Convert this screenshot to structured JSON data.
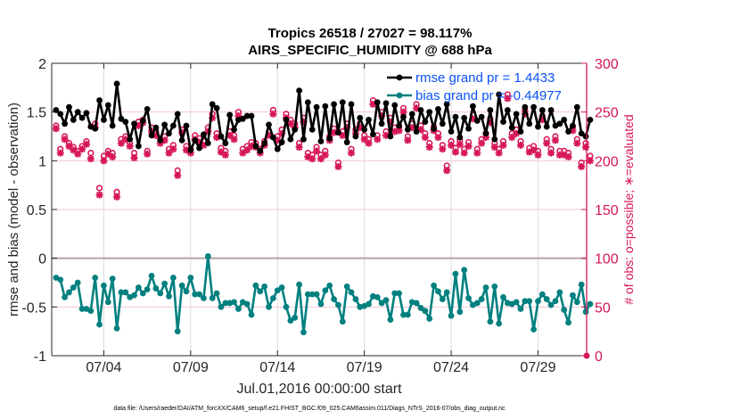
{
  "chart_data": {
    "type": "line",
    "title": [
      "Tropics 26518 / 27027 = 98.117%",
      "AIRS_SPECIFIC_HUMIDITY @ 688 hPa"
    ],
    "xlabel": "Jul.01,2016 00:00:00 start",
    "ylabel": "rmse and bias (model - observation)",
    "ylabel_right": "# of obs: o=possible; ∗=evaluated",
    "footnote": "data file: /Users/raeder/DAI/ATM_forcXX/CAM6_setup/f.e21.FHIST_BGC.f09_025.CAM6assim.011/Diags_NTrS_2016-07/obs_diag_output.nc",
    "x_unit": "days since Jul.01,2016 00:00:00",
    "xlim": [
      0,
      30.8
    ],
    "x_ticks": [
      3,
      8,
      13,
      18,
      23,
      28
    ],
    "x_tick_labels": [
      "07/04",
      "07/09",
      "07/14",
      "07/19",
      "07/24",
      "07/29"
    ],
    "ylim": [
      -1,
      2
    ],
    "y_ticks": [
      -1,
      -0.5,
      0,
      0.5,
      1,
      1.5,
      2
    ],
    "y_tick_labels": [
      "-1",
      "-0.5",
      "0",
      "0.5",
      "1",
      "1.5",
      "2"
    ],
    "ylim_right": [
      0,
      300
    ],
    "y_ticks_right": [
      0,
      50,
      100,
      150,
      200,
      250,
      300
    ],
    "y_tick_labels_right": [
      "0",
      "50",
      "100",
      "150",
      "200",
      "250",
      "300"
    ],
    "grid": true,
    "legend_position": "top-right",
    "legend": [
      "rmse grand pr = 1.4433",
      "bias grand pr = -0.44977"
    ],
    "colors": {
      "rmse": "#000000",
      "bias": "#00807f",
      "obs": "#d6175a",
      "legend_text": "#0b52f5",
      "zero_line": "#b8a6ab"
    },
    "x_start": 0.25,
    "x_step": 0.25,
    "series": [
      {
        "name": "rmse",
        "axis": "left",
        "values": [
          1.52,
          1.48,
          1.38,
          1.55,
          1.42,
          1.5,
          1.44,
          1.49,
          1.35,
          1.33,
          1.62,
          1.42,
          1.57,
          1.36,
          1.79,
          1.43,
          1.4,
          1.22,
          1.38,
          1.15,
          1.41,
          1.53,
          1.26,
          1.34,
          1.21,
          1.37,
          1.28,
          1.36,
          1.48,
          1.21,
          1.36,
          1.11,
          1.21,
          1.13,
          1.27,
          1.18,
          1.58,
          1.54,
          1.25,
          1.18,
          1.47,
          1.32,
          1.42,
          1.43,
          1.46,
          1.46,
          1.15,
          1.1,
          1.18,
          1.37,
          1.24,
          1.12,
          1.19,
          1.42,
          1.22,
          1.32,
          1.72,
          1.22,
          1.6,
          1.32,
          1.55,
          1.2,
          1.56,
          1.23,
          1.58,
          1.29,
          1.6,
          1.19,
          1.58,
          1.25,
          1.44,
          1.32,
          1.42,
          1.27,
          1.6,
          1.38,
          1.59,
          1.25,
          1.57,
          1.36,
          1.45,
          1.32,
          1.48,
          1.3,
          1.52,
          1.4,
          1.5,
          1.33,
          1.53,
          1.38,
          1.58,
          1.3,
          1.45,
          1.24,
          1.44,
          1.33,
          1.56,
          1.41,
          1.45,
          1.28,
          1.52,
          1.22,
          1.68,
          1.4,
          1.52,
          1.34,
          1.48,
          1.3,
          1.55,
          1.38,
          1.55,
          1.35,
          1.52,
          1.35,
          1.52,
          1.36,
          1.38,
          1.42,
          1.3,
          1.36,
          1.55,
          1.28,
          1.25,
          1.42
        ]
      },
      {
        "name": "bias",
        "axis": "left",
        "values": [
          -0.2,
          -0.22,
          -0.4,
          -0.35,
          -0.3,
          -0.25,
          -0.52,
          -0.52,
          -0.54,
          -0.2,
          -0.68,
          -0.28,
          -0.45,
          -0.21,
          -0.72,
          -0.35,
          -0.35,
          -0.4,
          -0.38,
          -0.3,
          -0.36,
          -0.32,
          -0.18,
          -0.31,
          -0.36,
          -0.26,
          -0.39,
          -0.2,
          -0.75,
          -0.28,
          -0.34,
          -0.2,
          -0.37,
          -0.37,
          -0.41,
          0.02,
          -0.41,
          -0.36,
          -0.5,
          -0.46,
          -0.46,
          -0.45,
          -0.52,
          -0.45,
          -0.47,
          -0.58,
          -0.28,
          -0.34,
          -0.29,
          -0.5,
          -0.41,
          -0.33,
          -0.3,
          -0.5,
          -0.64,
          -0.61,
          -0.27,
          -0.76,
          -0.37,
          -0.37,
          -0.37,
          -0.47,
          -0.33,
          -0.28,
          -0.42,
          -0.48,
          -0.65,
          -0.29,
          -0.35,
          -0.42,
          -0.5,
          -0.49,
          -0.47,
          -0.39,
          -0.4,
          -0.46,
          -0.43,
          -0.63,
          -0.36,
          -0.36,
          -0.58,
          -0.58,
          -0.45,
          -0.46,
          -0.51,
          -0.54,
          -0.62,
          -0.28,
          -0.34,
          -0.42,
          -0.35,
          -0.59,
          -0.16,
          -0.55,
          -0.12,
          -0.41,
          -0.48,
          -0.46,
          -0.42,
          -0.3,
          -0.65,
          -0.29,
          -0.67,
          -0.4,
          -0.46,
          -0.47,
          -0.45,
          -0.52,
          -0.44,
          -0.44,
          -0.73,
          -0.44,
          -0.37,
          -0.42,
          -0.48,
          -0.44,
          -0.35,
          -0.53,
          -0.66,
          -0.38,
          -0.45,
          -0.27,
          -0.55,
          -0.47
        ]
      },
      {
        "name": "obs_possible",
        "axis": "right",
        "marker": "o",
        "values": [
          236,
          212,
          225,
          218,
          214,
          210,
          215,
          220,
          208,
          238,
          172,
          205,
          210,
          208,
          168,
          222,
          225,
          218,
          208,
          240,
          242,
          210,
          234,
          230,
          222,
          225,
          212,
          216,
          190,
          232,
          215,
          212,
          226,
          223,
          220,
          234,
          248,
          228,
          213,
          210,
          230,
          226,
          250,
          212,
          215,
          219,
          218,
          212,
          220,
          230,
          252,
          225,
          232,
          248,
          242,
          238,
          218,
          244,
          208,
          206,
          214,
          206,
          210,
          225,
          233,
          198,
          230,
          238,
          212,
          232,
          238,
          226,
          222,
          262,
          226,
          250,
          230,
          244,
          234,
          235,
          254,
          225,
          238,
          258,
          236,
          228,
          218,
          235,
          228,
          216,
          195,
          220,
          213,
          221,
          212,
          219,
          247,
          212,
          222,
          228,
          243,
          218,
          212,
          220,
          268,
          228,
          232,
          220,
          252,
          213,
          215,
          210,
          246,
          222,
          212,
          225,
          210,
          210,
          208,
          235,
          222,
          198,
          218,
          205
        ]
      },
      {
        "name": "obs_evaluated",
        "axis": "right",
        "marker": "*",
        "values": [
          233,
          208,
          222,
          215,
          211,
          207,
          212,
          217,
          202,
          234,
          165,
          200,
          207,
          204,
          163,
          218,
          222,
          215,
          203,
          236,
          239,
          207,
          230,
          226,
          218,
          221,
          208,
          212,
          185,
          229,
          211,
          208,
          222,
          219,
          216,
          230,
          244,
          224,
          209,
          206,
          226,
          222,
          246,
          208,
          211,
          215,
          214,
          208,
          216,
          226,
          248,
          221,
          228,
          244,
          238,
          234,
          214,
          240,
          204,
          202,
          210,
          202,
          206,
          221,
          229,
          194,
          226,
          234,
          208,
          228,
          234,
          222,
          218,
          258,
          222,
          246,
          226,
          240,
          230,
          231,
          250,
          221,
          234,
          254,
          232,
          224,
          214,
          231,
          224,
          212,
          190,
          216,
          209,
          217,
          208,
          215,
          243,
          208,
          218,
          224,
          239,
          214,
          208,
          216,
          264,
          224,
          228,
          216,
          248,
          209,
          211,
          206,
          242,
          218,
          208,
          221,
          206,
          206,
          204,
          231,
          218,
          194,
          214,
          200
        ]
      }
    ]
  }
}
